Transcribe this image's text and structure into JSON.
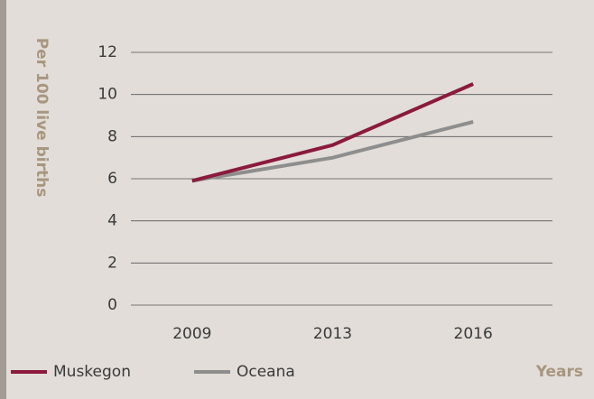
{
  "chart_data": {
    "type": "line",
    "y_label": "Per 100 live births",
    "x_label": "Years",
    "categories": [
      "2009",
      "2013",
      "2016"
    ],
    "series": [
      {
        "name": "Muskegon",
        "color": "#8b1a3d",
        "values": [
          5.9,
          7.6,
          10.5
        ]
      },
      {
        "name": "Oceana",
        "color": "#8e8e8e",
        "values": [
          5.9,
          7.0,
          8.7
        ]
      }
    ],
    "ylim": [
      0,
      12
    ],
    "yticks": [
      0,
      2,
      4,
      6,
      8,
      10,
      12
    ],
    "grid": true
  }
}
